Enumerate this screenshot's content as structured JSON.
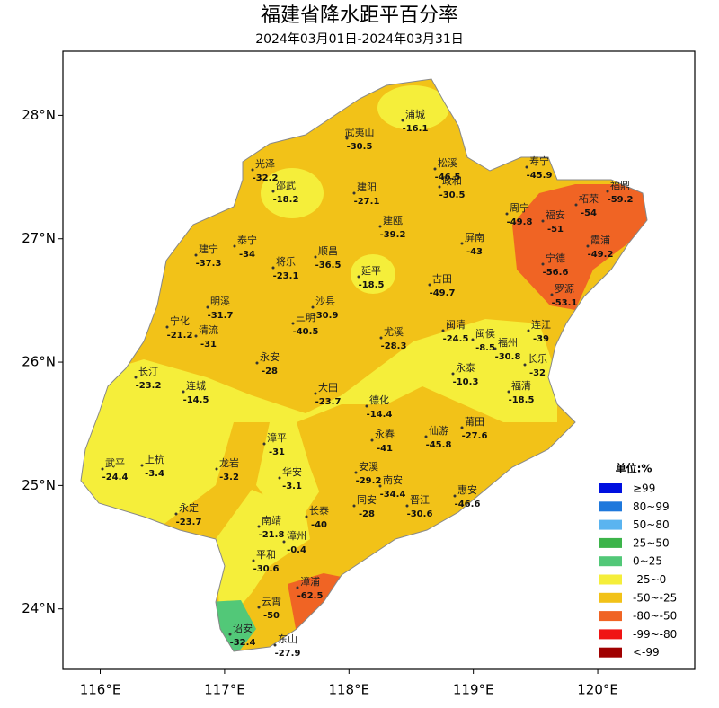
{
  "title": "福建省降水距平百分率",
  "subtitle": "2024年03月01日-2024年03月31日",
  "axes": {
    "xlim": [
      115.7,
      120.78
    ],
    "ylim": [
      23.51,
      28.52
    ],
    "xticks": [
      {
        "value": 116,
        "label": "116°E"
      },
      {
        "value": 117,
        "label": "117°E"
      },
      {
        "value": 118,
        "label": "118°E"
      },
      {
        "value": 119,
        "label": "119°E"
      },
      {
        "value": 120,
        "label": "120°E"
      }
    ],
    "yticks": [
      {
        "value": 24,
        "label": "24°N"
      },
      {
        "value": 25,
        "label": "25°N"
      },
      {
        "value": 26,
        "label": "26°N"
      },
      {
        "value": 27,
        "label": "27°N"
      },
      {
        "value": 28,
        "label": "28°N"
      }
    ]
  },
  "stations": [
    {
      "name": "浦城",
      "value": -16.1
    },
    {
      "name": "武夷山",
      "value": -30.5
    },
    {
      "name": "松溪",
      "value": -46.5
    },
    {
      "name": "光泽",
      "value": -32.2
    },
    {
      "name": "邵武",
      "value": -18.2
    },
    {
      "name": "建阳",
      "value": -27.1
    },
    {
      "name": "政和",
      "value": -30.5
    },
    {
      "name": "寿宁",
      "value": -45.9
    },
    {
      "name": "柘荣",
      "value": -54.0
    },
    {
      "name": "福鼎",
      "value": -59.2
    },
    {
      "name": "周宁",
      "value": -49.8
    },
    {
      "name": "福安",
      "value": -51.0
    },
    {
      "name": "霞浦",
      "value": -49.2
    },
    {
      "name": "建宁",
      "value": -37.3
    },
    {
      "name": "泰宁",
      "value": -34.0
    },
    {
      "name": "将乐",
      "value": -23.1
    },
    {
      "name": "顺昌",
      "value": -36.5
    },
    {
      "name": "建瓯",
      "value": -39.2
    },
    {
      "name": "屏南",
      "value": -43.0
    },
    {
      "name": "延平",
      "value": -18.5
    },
    {
      "name": "古田",
      "value": -49.7
    },
    {
      "name": "宁德",
      "value": -56.6
    },
    {
      "name": "罗源",
      "value": -53.1
    },
    {
      "name": "明溪",
      "value": -31.7
    },
    {
      "name": "沙县",
      "value": -30.9
    },
    {
      "name": "三明",
      "value": -40.5
    },
    {
      "name": "尤溪",
      "value": -28.3
    },
    {
      "name": "宁化",
      "value": -21.2
    },
    {
      "name": "清流",
      "value": -31.0
    },
    {
      "name": "永安",
      "value": -28.0
    },
    {
      "name": "闽清",
      "value": -24.5
    },
    {
      "name": "闽侯",
      "value": -8.5
    },
    {
      "name": "连江",
      "value": -39.0
    },
    {
      "name": "福州",
      "value": -30.8
    },
    {
      "name": "长乐",
      "value": -32.0
    },
    {
      "name": "长汀",
      "value": -23.2
    },
    {
      "name": "连城",
      "value": -14.5
    },
    {
      "name": "永泰",
      "value": -10.3
    },
    {
      "name": "福清",
      "value": -18.5
    },
    {
      "name": "大田",
      "value": -23.7
    },
    {
      "name": "德化",
      "value": -14.4
    },
    {
      "name": "永春",
      "value": -41.0
    },
    {
      "name": "仙游",
      "value": -45.8
    },
    {
      "name": "莆田",
      "value": -27.6
    },
    {
      "name": "漳平",
      "value": -31.0
    },
    {
      "name": "武平",
      "value": -24.4
    },
    {
      "name": "上杭",
      "value": -3.4
    },
    {
      "name": "龙岩",
      "value": -3.2
    },
    {
      "name": "华安",
      "value": -3.1
    },
    {
      "name": "安溪",
      "value": -29.2
    },
    {
      "name": "南安",
      "value": -34.4
    },
    {
      "name": "惠安",
      "value": -46.6
    },
    {
      "name": "晋江",
      "value": -30.6
    },
    {
      "name": "同安",
      "value": -28.0
    },
    {
      "name": "永定",
      "value": -23.7
    },
    {
      "name": "长泰",
      "value": -40.0
    },
    {
      "name": "南靖",
      "value": -21.8
    },
    {
      "name": "漳州",
      "value": -0.4
    },
    {
      "name": "平和",
      "value": -30.6
    },
    {
      "name": "漳浦",
      "value": -62.5
    },
    {
      "name": "云霄",
      "value": -50.0
    },
    {
      "name": "诏安",
      "value": -32.4
    },
    {
      "name": "东山",
      "value": -27.9
    }
  ],
  "legend": {
    "title": "单位:%",
    "items": [
      {
        "label": "≥99",
        "color": "#0010e0"
      },
      {
        "label": "80~99",
        "color": "#1e78dc"
      },
      {
        "label": "50~80",
        "color": "#5ab4f0"
      },
      {
        "label": "25~50",
        "color": "#3cb44a"
      },
      {
        "label": "0~25",
        "color": "#52c878"
      },
      {
        "label": "-25~0",
        "color": "#f5ee3a"
      },
      {
        "label": "-50~-25",
        "color": "#f2c218"
      },
      {
        "label": "-80~-50",
        "color": "#f06424"
      },
      {
        "label": "-99~-80",
        "color": "#f01414"
      },
      {
        "label": "<-99",
        "color": "#a00000"
      }
    ]
  }
}
